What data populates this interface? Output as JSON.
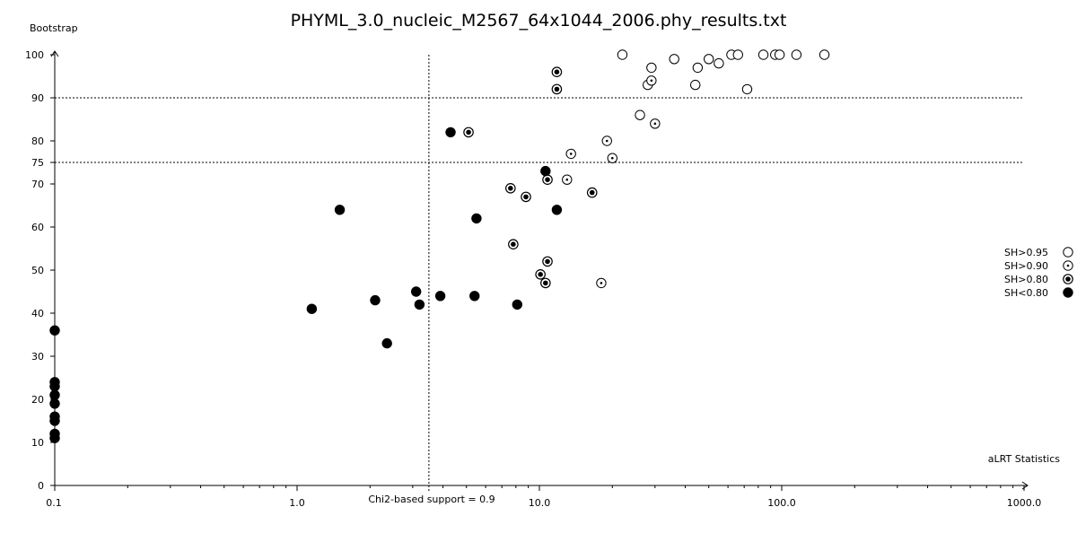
{
  "chart_data": {
    "type": "scatter",
    "title": "PHYML_3.0_nucleic_M2567_64x1044_2006.phy_results.txt",
    "xlabel": "aLRT Statistics",
    "ylabel": "Bootstrap",
    "x_scale": "log",
    "xlim": [
      0.1,
      1000.0
    ],
    "ylim": [
      0,
      100
    ],
    "x_ticks": [
      "0.1",
      "1.0",
      "10.0",
      "100.0",
      "1000.0"
    ],
    "y_ticks": [
      "0",
      "10",
      "20",
      "30",
      "40",
      "50",
      "60",
      "70",
      "75",
      "80",
      "90",
      "100"
    ],
    "reference_lines": {
      "horizontal": [
        75,
        90
      ],
      "vertical": [
        {
          "x": 3.5,
          "label": "Chi2-based support = 0.9"
        }
      ]
    },
    "grid": false,
    "legend_position": "right",
    "series": [
      {
        "name": "SH>0.95",
        "marker": "open-circle",
        "color": "#000000",
        "points": [
          [
            22,
            100
          ],
          [
            62,
            100
          ],
          [
            66,
            100
          ],
          [
            84,
            100
          ],
          [
            94,
            100
          ],
          [
            98,
            100
          ],
          [
            115,
            100
          ],
          [
            150,
            100
          ],
          [
            36,
            99
          ],
          [
            50,
            99
          ],
          [
            55,
            98
          ],
          [
            29,
            97
          ],
          [
            45,
            97
          ],
          [
            28,
            93
          ],
          [
            44,
            93
          ],
          [
            72,
            92
          ],
          [
            26,
            86
          ]
        ]
      },
      {
        "name": "SH>0.90",
        "marker": "dotted-circle",
        "color": "#000000",
        "points": [
          [
            29,
            94
          ],
          [
            30,
            84
          ],
          [
            19,
            80
          ],
          [
            13.5,
            77
          ],
          [
            20,
            76
          ],
          [
            13,
            71
          ],
          [
            18,
            47
          ]
        ]
      },
      {
        "name": "SH>0.80",
        "marker": "ringed-dot",
        "color": "#000000",
        "points": [
          [
            11.8,
            96
          ],
          [
            11.8,
            92
          ],
          [
            5.1,
            82
          ],
          [
            10.8,
            71
          ],
          [
            7.6,
            69
          ],
          [
            16.5,
            68
          ],
          [
            8.8,
            67
          ],
          [
            7.8,
            56
          ],
          [
            10.8,
            52
          ],
          [
            10.1,
            49
          ],
          [
            10.6,
            47
          ]
        ]
      },
      {
        "name": "SH<0.80",
        "marker": "filled-circle",
        "color": "#000000",
        "points": [
          [
            4.3,
            82
          ],
          [
            10.6,
            73
          ],
          [
            1.5,
            64
          ],
          [
            11.8,
            64
          ],
          [
            5.5,
            62
          ],
          [
            3.1,
            45
          ],
          [
            2.1,
            43
          ],
          [
            3.9,
            44
          ],
          [
            5.4,
            44
          ],
          [
            3.2,
            42
          ],
          [
            1.15,
            41
          ],
          [
            8.1,
            42
          ],
          [
            2.35,
            33
          ],
          [
            0.1,
            36
          ],
          [
            0.1,
            24
          ],
          [
            0.1,
            23
          ],
          [
            0.1,
            21
          ],
          [
            0.1,
            19
          ],
          [
            0.1,
            16
          ],
          [
            0.1,
            15
          ],
          [
            0.1,
            12
          ],
          [
            0.1,
            11
          ]
        ]
      }
    ]
  }
}
